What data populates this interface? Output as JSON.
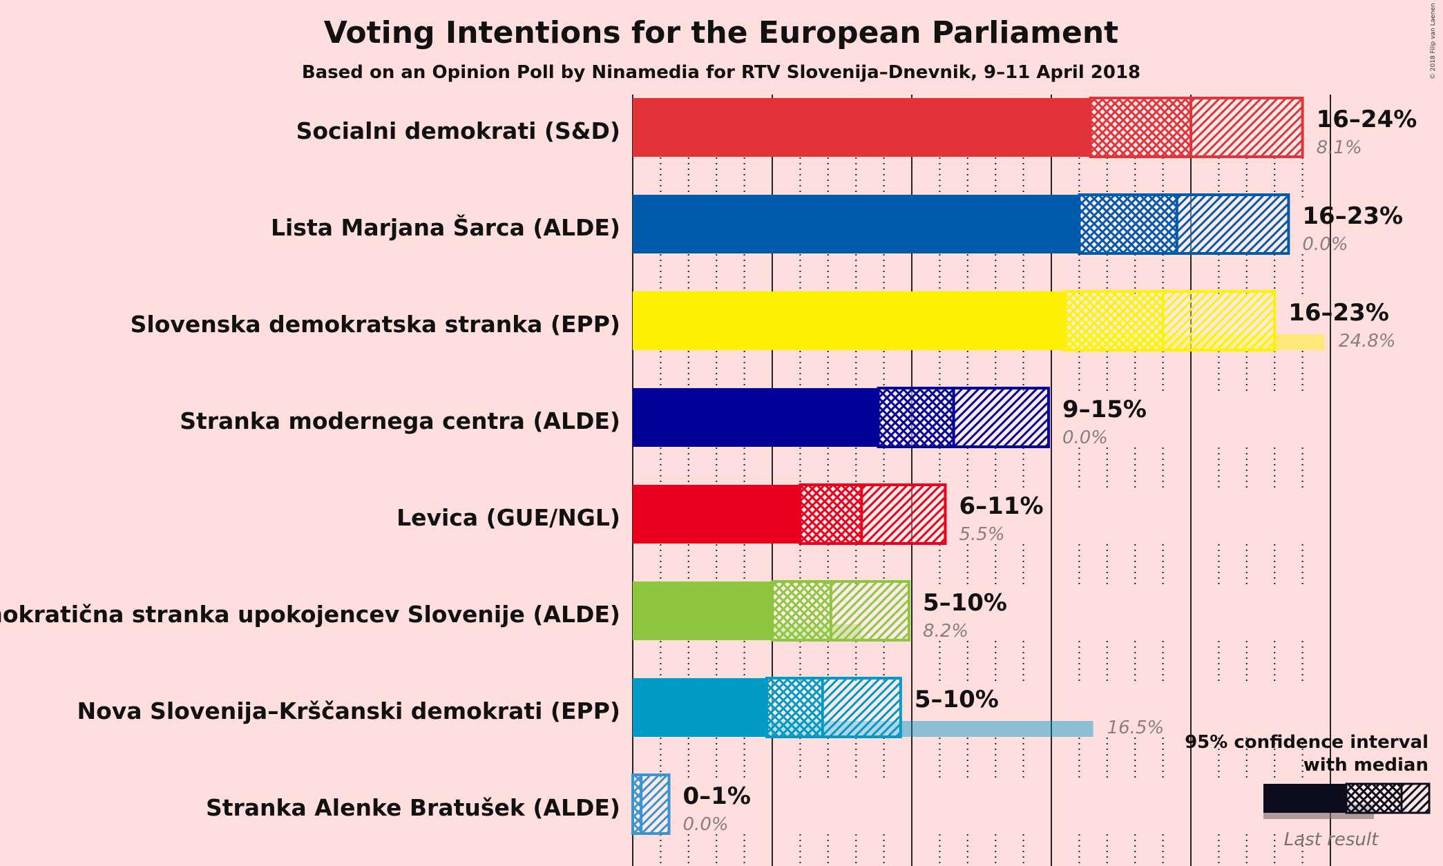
{
  "title": "Voting Intentions for the European Parliament",
  "subtitle": "Based on an Opinion Poll by Ninamedia for RTV Slovenija–Dnevnik, 9–11 April 2018",
  "copyright": "© 2018 Filip van Laenen",
  "legend": {
    "line1": "95% confidence interval",
    "line2": "with median",
    "last_label": "Last result"
  },
  "chart_data": {
    "type": "bar",
    "orientation": "horizontal",
    "title": "Voting Intentions for the European Parliament",
    "subtitle": "Based on an Opinion Poll by Ninamedia for RTV Slovenija–Dnevnik, 9–11 April 2018",
    "xlim": [
      0,
      25
    ],
    "grid": true,
    "legend_position": "bottom-right",
    "series": [
      {
        "party": "Socialni demokrati (S&D)",
        "color": "#E3333A",
        "ci_low": 16.4,
        "ci_mid": 18.2,
        "median": 20.0,
        "ci_mid_high": 20.0,
        "ci_high": 24.0,
        "range_label": "16–24%",
        "last": 8.1,
        "last_label": "8.1%"
      },
      {
        "party": "Lista Marjana Šarca (ALDE)",
        "color": "#005BAC",
        "ci_low": 16.0,
        "ci_mid": 17.8,
        "median": 19.5,
        "ci_high": 23.5,
        "range_label": "16–23%",
        "last": 0.0,
        "last_label": "0.0%"
      },
      {
        "party": "Slovenska demokratska stranka (EPP)",
        "color": "#FFF200",
        "ci_low": 15.5,
        "ci_mid": 17.3,
        "median": 19.0,
        "ci_high": 23.0,
        "range_label": "16–23%",
        "last": 24.8,
        "last_label": "24.8%"
      },
      {
        "party": "Stranka modernega centra (ALDE)",
        "color": "#000099",
        "ci_low": 8.8,
        "ci_mid": 10.2,
        "median": 11.5,
        "ci_high": 14.9,
        "range_label": "9–15%",
        "last": 0.0,
        "last_label": "0.0%"
      },
      {
        "party": "Levica (GUE/NGL)",
        "color": "#E8001C",
        "ci_low": 6.0,
        "ci_mid": 7.1,
        "median": 8.2,
        "ci_high": 11.2,
        "range_label": "6–11%",
        "last": 5.5,
        "last_label": "5.5%"
      },
      {
        "party": "Demokratična stranka upokojencev Slovenije (ALDE)",
        "color": "#8DC63F",
        "ci_low": 5.0,
        "ci_mid": 6.1,
        "median": 7.1,
        "ci_high": 9.9,
        "range_label": "5–10%",
        "last": 8.2,
        "last_label": "8.2%"
      },
      {
        "party": "Nova Slovenija–Krščanski demokrati (EPP)",
        "color": "#009AC7",
        "ci_low": 4.8,
        "ci_mid": 5.8,
        "median": 6.8,
        "ci_high": 9.6,
        "range_label": "5–10%",
        "last": 16.5,
        "last_label": "16.5%"
      },
      {
        "party": "Stranka Alenke Bratušek (ALDE)",
        "color": "#3A94D0",
        "ci_low": 0.0,
        "ci_mid": 0.1,
        "median": 0.3,
        "ci_high": 1.3,
        "range_label": "0–1%",
        "last": 0.0,
        "last_label": "0.0%"
      }
    ]
  }
}
